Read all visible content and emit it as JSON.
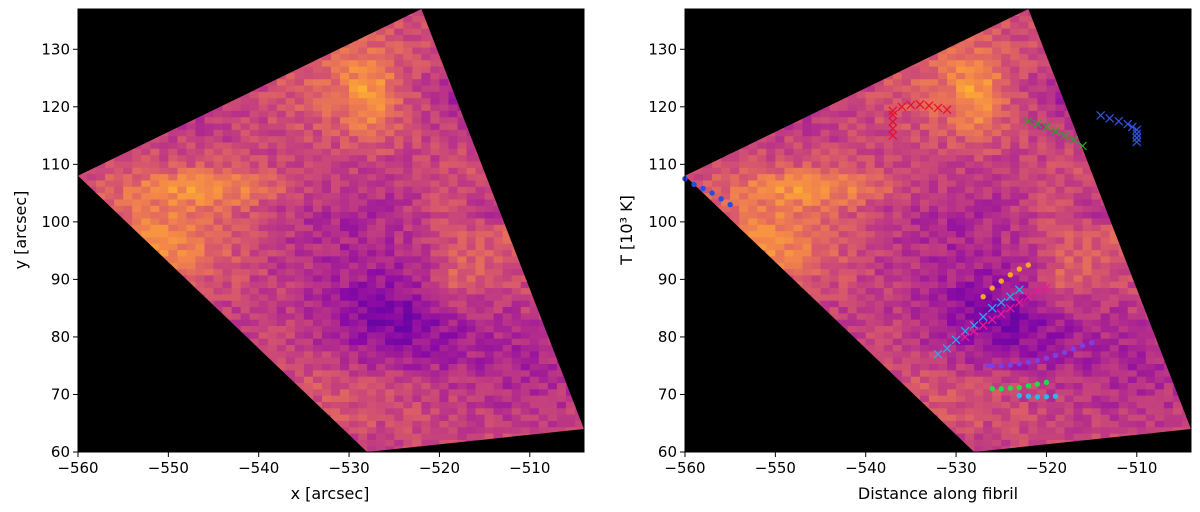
{
  "chart_data": [
    {
      "type": "heatmap",
      "title": "",
      "xlabel": "x [arcsec]",
      "ylabel": "y [arcsec]",
      "xlim": [
        -560,
        -504
      ],
      "ylim": [
        60,
        137
      ],
      "xticks": [
        -560,
        -550,
        -540,
        -530,
        -520,
        -510
      ],
      "yticks": [
        60,
        70,
        80,
        90,
        100,
        110,
        120,
        130
      ],
      "xtick_labels": [
        "−560",
        "−550",
        "−540",
        "−530",
        "−520",
        "−510"
      ],
      "ytick_labels": [
        "60",
        "70",
        "80",
        "90",
        "100",
        "110",
        "120",
        "130"
      ],
      "grid": false,
      "background": "#000000",
      "colormap": "plasma",
      "field_of_view": [
        [
          -560,
          108
        ],
        [
          -522,
          137
        ],
        [
          -504,
          64
        ],
        [
          -528,
          60
        ]
      ],
      "series": []
    },
    {
      "type": "heatmap",
      "title": "",
      "xlabel": "Distance along fibril",
      "ylabel": "T [10³ K]",
      "xlim": [
        -560,
        -504
      ],
      "ylim": [
        60,
        137
      ],
      "xticks": [
        -560,
        -550,
        -540,
        -530,
        -520,
        -510
      ],
      "yticks": [
        60,
        70,
        80,
        90,
        100,
        110,
        120,
        130
      ],
      "xtick_labels": [
        "−560",
        "−550",
        "−540",
        "−530",
        "−520",
        "−510"
      ],
      "ytick_labels": [
        "60",
        "70",
        "80",
        "90",
        "100",
        "110",
        "120",
        "130"
      ],
      "grid": false,
      "background": "#000000",
      "colormap": "plasma",
      "field_of_view": [
        [
          -560,
          108
        ],
        [
          -522,
          137
        ],
        [
          -504,
          64
        ],
        [
          -528,
          60
        ]
      ],
      "series": [
        {
          "marker": "x",
          "color": "#e8112d",
          "points": [
            [
              -537,
              115
            ],
            [
              -537,
              116.2
            ],
            [
              -537,
              117.4
            ],
            [
              -537,
              118.6
            ],
            [
              -537,
              119.3
            ],
            [
              -536,
              120
            ],
            [
              -535,
              120.3
            ],
            [
              -534,
              120.4
            ],
            [
              -533,
              120.2
            ],
            [
              -532,
              119.8
            ],
            [
              -531,
              119.5
            ]
          ]
        },
        {
          "marker": "x",
          "color": "#2ca02c",
          "points": [
            [
              -522,
              117.5
            ],
            [
              -521,
              117
            ],
            [
              -520,
              116.5
            ],
            [
              -519,
              115.8
            ],
            [
              -518,
              115
            ],
            [
              -517,
              114.2
            ],
            [
              -516,
              113.2
            ]
          ]
        },
        {
          "marker": "x",
          "color": "#3050e0",
          "points": [
            [
              -514,
              118.5
            ],
            [
              -513,
              118
            ],
            [
              -512,
              117.5
            ],
            [
              -511,
              117
            ],
            [
              -510.5,
              116.5
            ],
            [
              -510,
              116
            ],
            [
              -510,
              115.3
            ],
            [
              -510,
              114.6
            ],
            [
              -510,
              113.9
            ]
          ]
        },
        {
          "marker": "x",
          "color": "#2aa8f0",
          "points": [
            [
              -532,
              77
            ],
            [
              -531,
              78
            ],
            [
              -530,
              79.5
            ],
            [
              -529,
              81
            ],
            [
              -528,
              82
            ],
            [
              -527,
              83.5
            ],
            [
              -526,
              85
            ],
            [
              -525,
              86
            ],
            [
              -524,
              87
            ],
            [
              -523,
              88.2
            ]
          ]
        },
        {
          "marker": "x",
          "color": "#f01890",
          "points": [
            [
              -529,
              80
            ],
            [
              -528,
              81
            ],
            [
              -527,
              82
            ],
            [
              -526,
              83
            ],
            [
              -525,
              84
            ],
            [
              -524,
              85
            ],
            [
              -523,
              86
            ],
            [
              -522,
              87
            ],
            [
              -521,
              88
            ],
            [
              -520,
              88.5
            ]
          ]
        },
        {
          "marker": "o",
          "color": "#1f4ee8",
          "points": [
            [
              -560,
              107.5
            ],
            [
              -559,
              106.5
            ],
            [
              -558,
              105.8
            ],
            [
              -557,
              105
            ],
            [
              -556,
              104
            ],
            [
              -555,
              103
            ]
          ]
        },
        {
          "marker": "o",
          "color": "#f5a623",
          "points": [
            [
              -527,
              87
            ],
            [
              -526,
              88.5
            ],
            [
              -525,
              89.7
            ],
            [
              -524,
              90.8
            ],
            [
              -523,
              91.8
            ],
            [
              -522,
              92.5
            ]
          ]
        },
        {
          "marker": "o",
          "color": "#7b3fe4",
          "points": [
            [
              -526.5,
              75
            ],
            [
              -526,
              75
            ],
            [
              -525,
              75
            ],
            [
              -524,
              75.1
            ],
            [
              -523,
              75.3
            ],
            [
              -522,
              75.6
            ],
            [
              -521,
              75.9
            ],
            [
              -520,
              76.3
            ],
            [
              -519,
              76.8
            ],
            [
              -518,
              77.3
            ],
            [
              -517,
              77.9
            ],
            [
              -516,
              78.5
            ],
            [
              -515,
              79
            ]
          ]
        },
        {
          "marker": "o",
          "color": "#22dd44",
          "points": [
            [
              -526,
              71
            ],
            [
              -525,
              71
            ],
            [
              -524,
              71.1
            ],
            [
              -523,
              71.2
            ],
            [
              -522,
              71.5
            ],
            [
              -521,
              71.8
            ],
            [
              -520,
              72.1
            ]
          ]
        },
        {
          "marker": "o",
          "color": "#2ab8e8",
          "points": [
            [
              -523,
              69.8
            ],
            [
              -522,
              69.7
            ],
            [
              -521,
              69.6
            ],
            [
              -520,
              69.6
            ],
            [
              -519,
              69.7
            ]
          ]
        }
      ]
    }
  ]
}
